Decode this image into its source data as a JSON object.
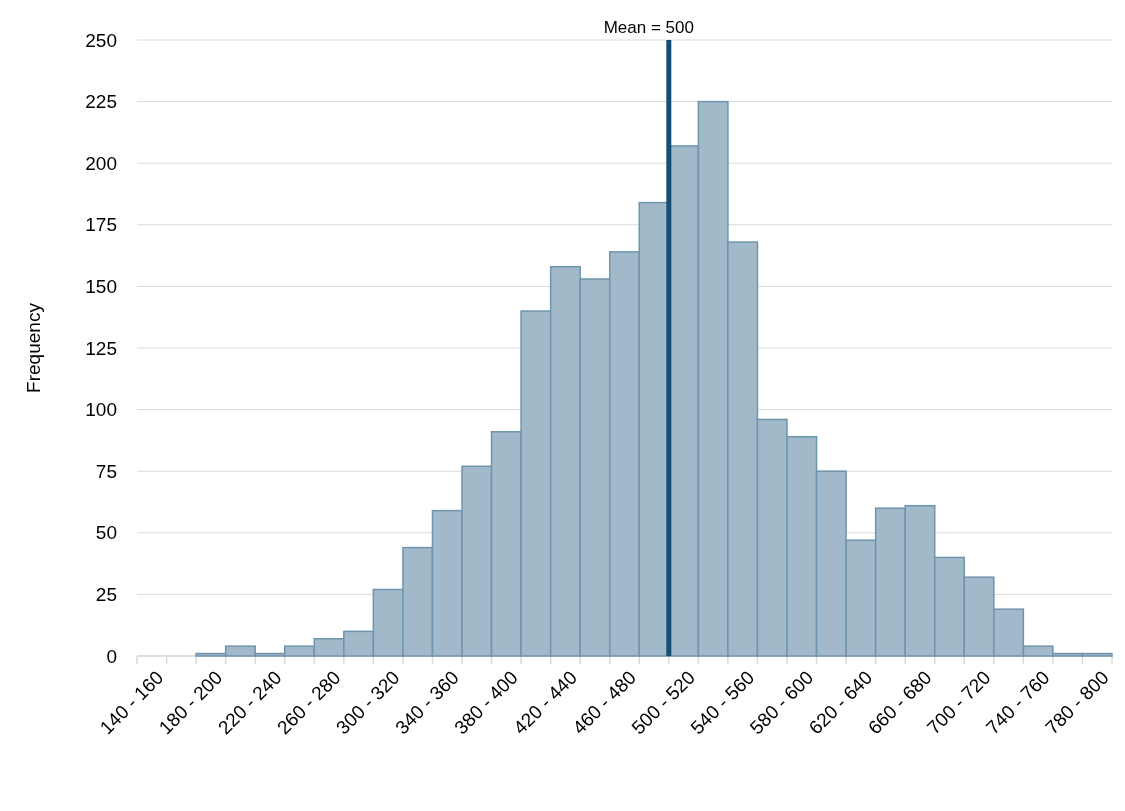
{
  "chart_data": {
    "type": "bar",
    "ylabel": "Frequency",
    "categories": [
      "140 - 160",
      null,
      "180 - 200",
      null,
      "220 - 240",
      null,
      "260 - 280",
      null,
      "300 - 320",
      null,
      "340 - 360",
      null,
      "380 - 400",
      null,
      "420 - 440",
      null,
      "460 - 480",
      null,
      "500 - 520",
      null,
      "540 - 560",
      null,
      "580 - 600",
      null,
      "620 - 640",
      null,
      "660 - 680",
      null,
      "700 - 720",
      null,
      "740 - 760",
      null,
      "780 - 800"
    ],
    "values": [
      0,
      0,
      1,
      4,
      1,
      4,
      7,
      10,
      27,
      44,
      59,
      77,
      91,
      140,
      158,
      153,
      164,
      184,
      207,
      225,
      168,
      96,
      89,
      75,
      47,
      60,
      61,
      40,
      32,
      19,
      4,
      1,
      1
    ],
    "color": "#a2b9c9",
    "ylim": [
      0,
      250
    ],
    "yticks": [
      0,
      25,
      50,
      75,
      100,
      125,
      150,
      175,
      200,
      225,
      250
    ],
    "grid": "y",
    "ref_lines": [
      {
        "axis": "x",
        "value": "500 - 520",
        "label": "Mean = 500",
        "color": "#154e72"
      }
    ]
  }
}
